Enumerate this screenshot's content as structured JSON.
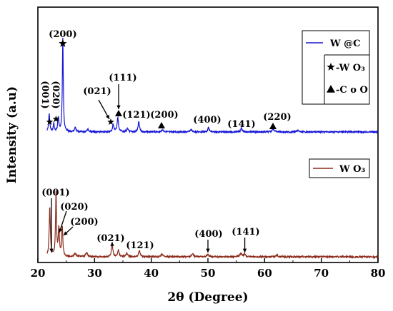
{
  "chart_data": {
    "type": "line",
    "xlabel": "2θ (Degree)",
    "ylabel": "Intensity (a.u)",
    "xlim": [
      20,
      80
    ],
    "xticks": [
      "20",
      "30",
      "40",
      "50",
      "60",
      "70",
      "80"
    ],
    "yticks_shown": false,
    "grid": false,
    "legends": [
      {
        "placement": "top-right",
        "entries": [
          {
            "label": "W @C",
            "marker": "line",
            "color": "#1515d6"
          },
          {
            "label": "-W O₃",
            "marker": "star",
            "color": "#000000"
          },
          {
            "label": "-C o O",
            "marker": "triangle",
            "color": "#000000"
          }
        ]
      },
      {
        "placement": "middle-right",
        "entries": [
          {
            "label": "W O₃",
            "marker": "line",
            "color": "#8b2a1a"
          }
        ]
      }
    ],
    "series": [
      {
        "name": "W @C",
        "color": "#1515d6",
        "baseline": 0,
        "peaks": [
          {
            "x": 22.0,
            "h": 25,
            "w": 0.12
          },
          {
            "x": 22.8,
            "h": 12,
            "w": 0.1
          },
          {
            "x": 23.6,
            "h": 20,
            "w": 0.12
          },
          {
            "x": 24.4,
            "h": 132,
            "w": 0.1
          },
          {
            "x": 26.6,
            "h": 6,
            "w": 0.15
          },
          {
            "x": 28.8,
            "h": 4,
            "w": 0.2
          },
          {
            "x": 33.3,
            "h": 10,
            "w": 0.15
          },
          {
            "x": 34.1,
            "h": 20,
            "w": 0.14
          },
          {
            "x": 35.8,
            "h": 4,
            "w": 0.2
          },
          {
            "x": 37.8,
            "h": 14,
            "w": 0.15
          },
          {
            "x": 42.0,
            "h": 3,
            "w": 0.2
          },
          {
            "x": 47.0,
            "h": 3,
            "w": 0.2
          },
          {
            "x": 50.1,
            "h": 6,
            "w": 0.15
          },
          {
            "x": 55.9,
            "h": 6,
            "w": 0.15
          },
          {
            "x": 61.5,
            "h": 5,
            "w": 0.2
          },
          {
            "x": 65.8,
            "h": 2,
            "w": 0.2
          }
        ],
        "annotations": [
          {
            "x": 24.4,
            "label": "(200)",
            "symbol": "star"
          },
          {
            "x": 22.2,
            "label": "(001)",
            "symbol": "star"
          },
          {
            "x": 23.2,
            "label": "(020)",
            "symbol": "star"
          },
          {
            "x": 33.3,
            "label": "(021)",
            "symbol": "star"
          },
          {
            "x": 34.1,
            "label": "(111)",
            "symbol": "triangle"
          },
          {
            "x": 37.8,
            "label": "(121)",
            "symbol": "none"
          },
          {
            "x": 41.8,
            "label": "(200)",
            "symbol": "triangle"
          },
          {
            "x": 50.1,
            "label": "(400)",
            "symbol": "none"
          },
          {
            "x": 55.9,
            "label": "(141)",
            "symbol": "none"
          },
          {
            "x": 61.5,
            "label": "(220)",
            "symbol": "triangle"
          }
        ]
      },
      {
        "name": "W O₃",
        "color": "#8b2a1a",
        "baseline": 0,
        "peaks": [
          {
            "x": 22.1,
            "h": 60,
            "w": 0.12
          },
          {
            "x": 23.2,
            "h": 78,
            "w": 0.1
          },
          {
            "x": 23.7,
            "h": 34,
            "w": 0.12
          },
          {
            "x": 24.3,
            "h": 36,
            "w": 0.12
          },
          {
            "x": 26.6,
            "h": 4,
            "w": 0.2
          },
          {
            "x": 28.6,
            "h": 5,
            "w": 0.2
          },
          {
            "x": 33.1,
            "h": 16,
            "w": 0.14
          },
          {
            "x": 34.2,
            "h": 8,
            "w": 0.15
          },
          {
            "x": 35.7,
            "h": 4,
            "w": 0.2
          },
          {
            "x": 37.9,
            "h": 8,
            "w": 0.15
          },
          {
            "x": 41.9,
            "h": 3,
            "w": 0.2
          },
          {
            "x": 47.3,
            "h": 4,
            "w": 0.2
          },
          {
            "x": 50.0,
            "h": 3,
            "w": 0.2
          },
          {
            "x": 55.8,
            "h": 4,
            "w": 0.2
          },
          {
            "x": 56.5,
            "h": 3,
            "w": 0.2
          },
          {
            "x": 62.2,
            "h": 2,
            "w": 0.2
          }
        ],
        "annotations": [
          {
            "x": 22.4,
            "label": "(001)",
            "symbol": "arrow"
          },
          {
            "x": 23.7,
            "label": "(020)",
            "symbol": "arrow"
          },
          {
            "x": 24.3,
            "label": "(200)",
            "symbol": "arrow"
          },
          {
            "x": 33.1,
            "label": "(021)",
            "symbol": "arrow"
          },
          {
            "x": 37.9,
            "label": "(121)",
            "symbol": "none"
          },
          {
            "x": 50.0,
            "label": "(400)",
            "symbol": "arrow"
          },
          {
            "x": 56.5,
            "label": "(141)",
            "symbol": "arrow"
          }
        ]
      }
    ]
  }
}
